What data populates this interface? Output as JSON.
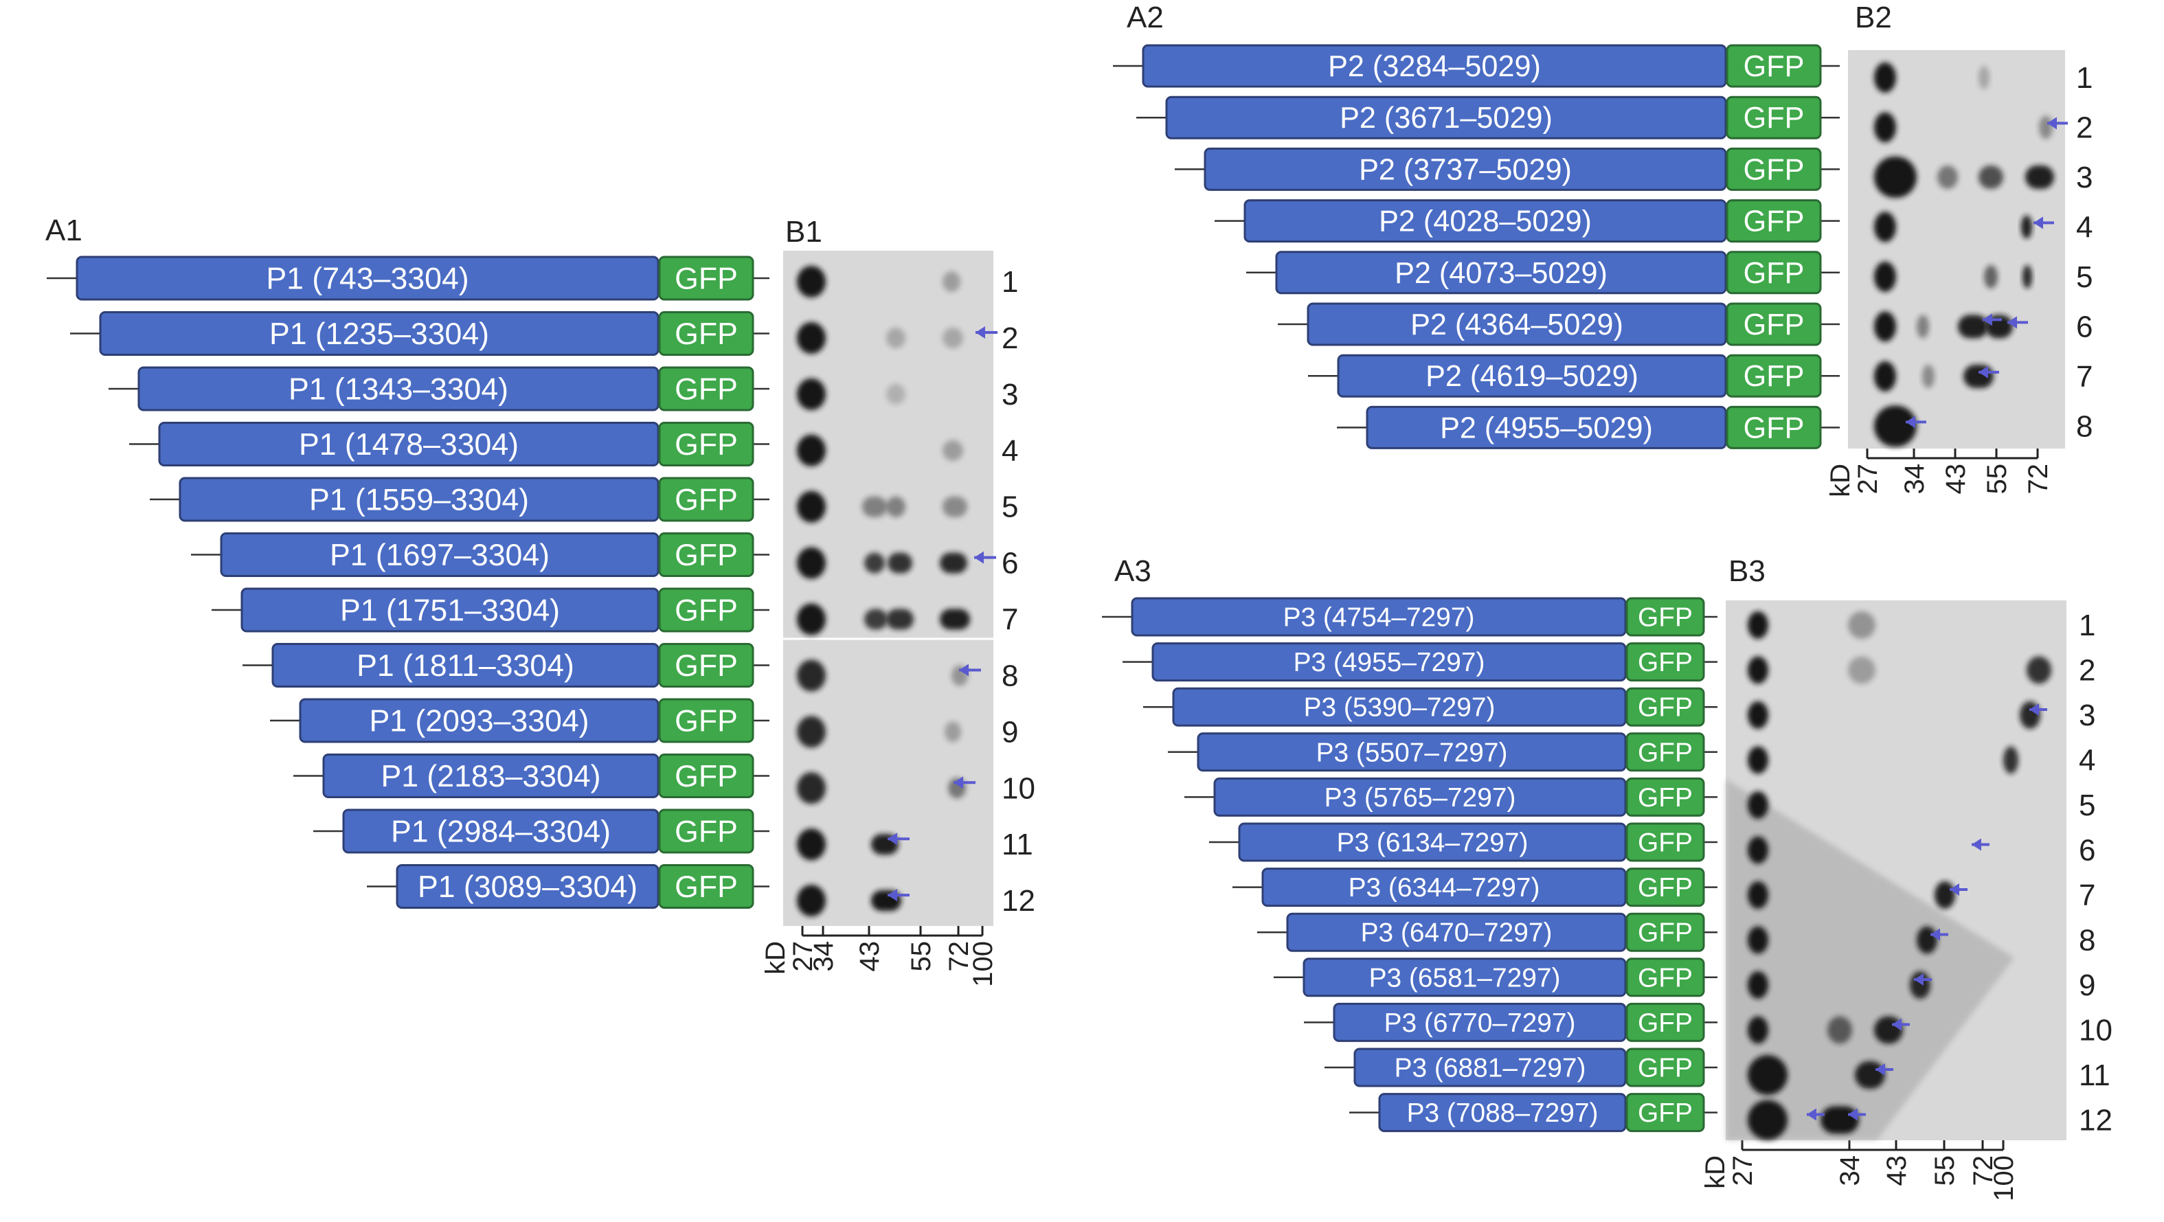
{
  "panels": {
    "A1": {
      "label": "A1",
      "gfp_label": "GFP",
      "constructs": [
        "P1 (743–3304)",
        "P1 (1235–3304)",
        "P1 (1343–3304)",
        "P1 (1478–3304)",
        "P1 (1559–3304)",
        "P1 (1697–3304)",
        "P1 (1751–3304)",
        "P1 (1811–3304)",
        "P1 (2093–3304)",
        "P1 (2183–3304)",
        "P1 (2984–3304)",
        "P1 (3089–3304)"
      ]
    },
    "B1": {
      "label": "B1",
      "lanes": [
        "1",
        "2",
        "3",
        "4",
        "5",
        "6",
        "7",
        "8",
        "9",
        "10",
        "11",
        "12"
      ],
      "unit": "kD",
      "markers": [
        "27",
        "34",
        "43",
        "55",
        "72",
        "100"
      ],
      "arrow_lanes": [
        "2",
        "6",
        "8",
        "10",
        "11",
        "12"
      ]
    },
    "A2": {
      "label": "A2",
      "gfp_label": "GFP",
      "constructs": [
        "P2 (3284–5029)",
        "P2 (3671–5029)",
        "P2 (3737–5029)",
        "P2 (4028–5029)",
        "P2 (4073–5029)",
        "P2 (4364–5029)",
        "P2 (4619–5029)",
        "P2 (4955–5029)"
      ]
    },
    "B2": {
      "label": "B2",
      "lanes": [
        "1",
        "2",
        "3",
        "4",
        "5",
        "6",
        "7",
        "8"
      ],
      "unit": "kD",
      "markers": [
        "27",
        "34",
        "43",
        "55",
        "72"
      ],
      "arrow_lanes": [
        "2",
        "4",
        "6",
        "7",
        "8"
      ]
    },
    "A3": {
      "label": "A3",
      "gfp_label": "GFP",
      "constructs": [
        "P3 (4754–7297)",
        "P3 (4955–7297)",
        "P3 (5390–7297)",
        "P3 (5507–7297)",
        "P3 (5765–7297)",
        "P3 (6134–7297)",
        "P3 (6344–7297)",
        "P3 (6470–7297)",
        "P3 (6581–7297)",
        "P3 (6770–7297)",
        "P3 (6881–7297)",
        "P3 (7088–7297)"
      ]
    },
    "B3": {
      "label": "B3",
      "lanes": [
        "1",
        "2",
        "3",
        "4",
        "5",
        "6",
        "7",
        "8",
        "9",
        "10",
        "11",
        "12"
      ],
      "unit": "kD",
      "markers": [
        "27",
        "34",
        "43",
        "55",
        "72",
        "100"
      ],
      "arrow_lanes": [
        "3",
        "6",
        "7",
        "8",
        "9",
        "10",
        "11",
        "12"
      ]
    }
  },
  "colors": {
    "construct_fill": "#4a6cc4",
    "construct_stroke": "#2e3f75",
    "gfp_fill": "#3ea84a",
    "gfp_stroke": "#2a6a33",
    "arrow": "#5a5ad0",
    "gel_background": "#d8d8d8",
    "band": "#151515"
  }
}
